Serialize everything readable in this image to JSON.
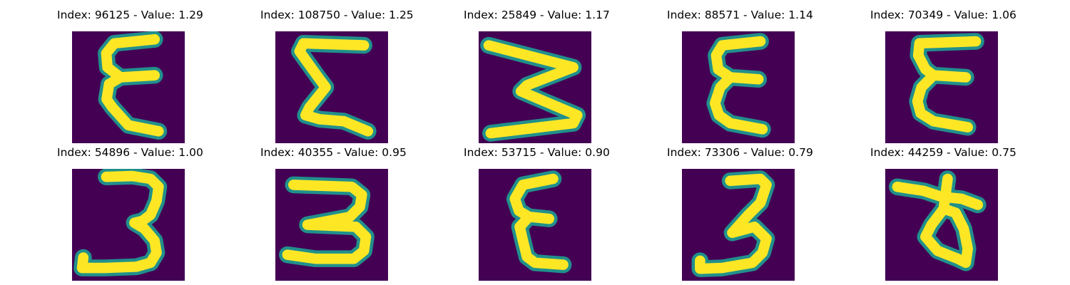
{
  "colors": {
    "background": "#440154",
    "mid": "#21908c",
    "edge": "#3b528b",
    "stroke": "#fde725",
    "stroke_soft": "#b5de2b"
  },
  "panels": [
    {
      "title": "Index: 96125 - Value: 1.29",
      "glyph": "epsilon"
    },
    {
      "title": "Index: 108750 - Value: 1.25",
      "glyph": "sigma"
    },
    {
      "title": "Index: 25849 - Value: 1.17",
      "glyph": "sideways-m"
    },
    {
      "title": "Index: 88571 - Value: 1.14",
      "glyph": "epsilon"
    },
    {
      "title": "Index: 70349 - Value: 1.06",
      "glyph": "epsilon"
    },
    {
      "title": "Index: 54896 - Value: 1.00",
      "glyph": "three"
    },
    {
      "title": "Index: 40355 - Value: 0.95",
      "glyph": "three"
    },
    {
      "title": "Index: 53715 - Value: 0.90",
      "glyph": "epsilon"
    },
    {
      "title": "Index: 73306 - Value: 0.79",
      "glyph": "three"
    },
    {
      "title": "Index: 44259 - Value: 0.75",
      "glyph": "crossed-loop"
    }
  ]
}
